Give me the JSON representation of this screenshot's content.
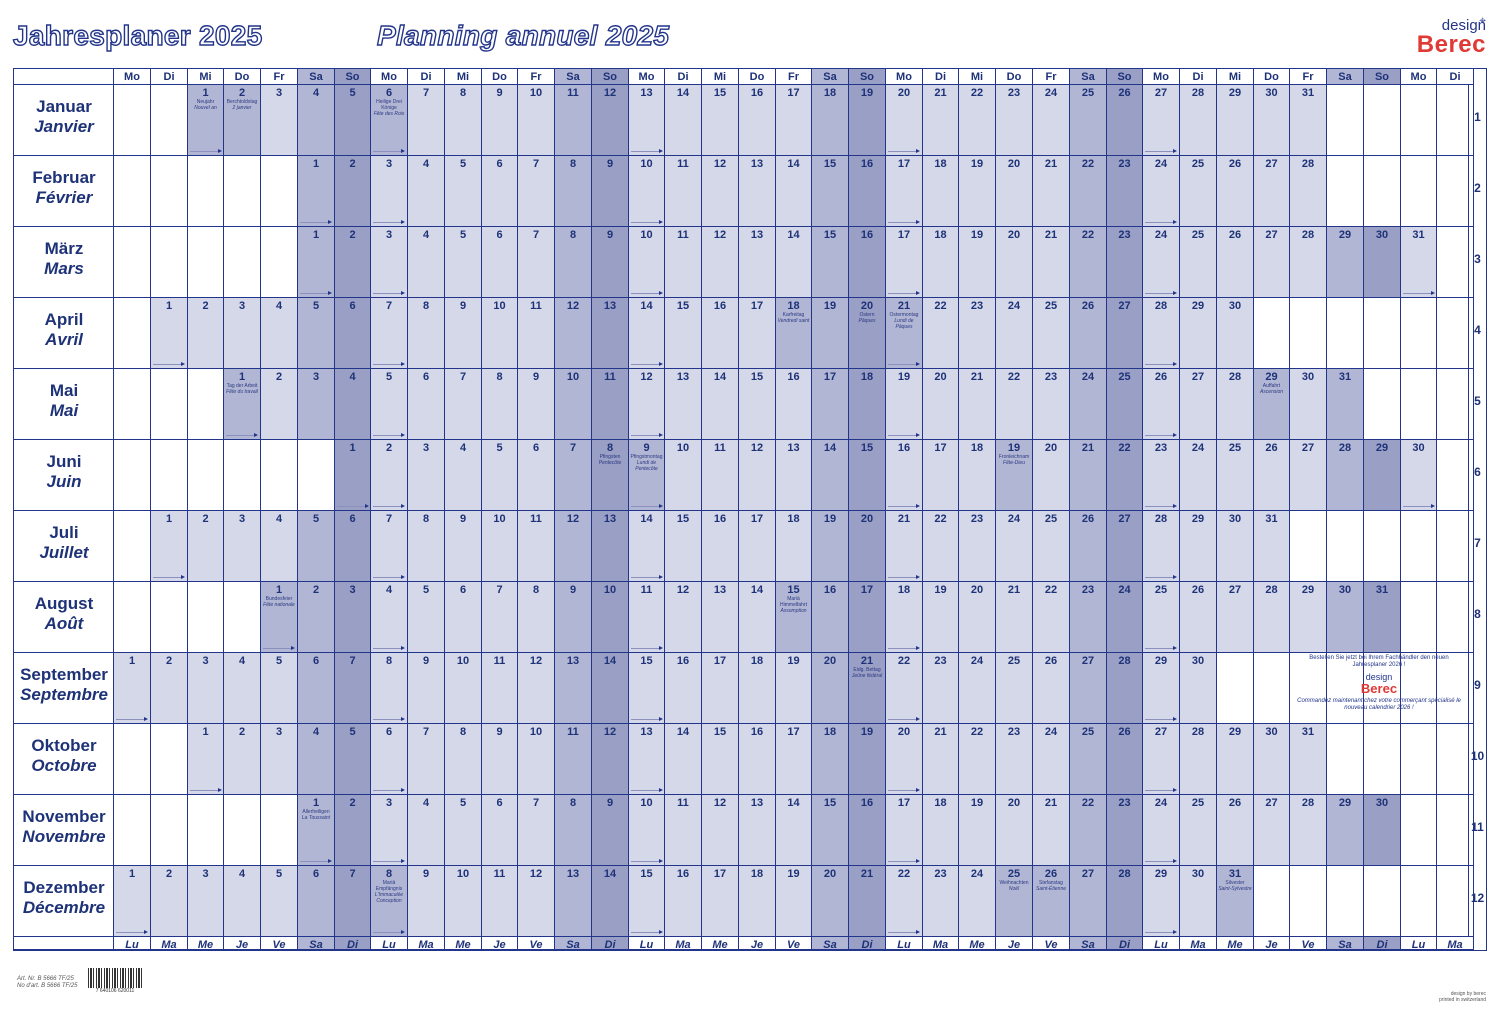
{
  "header": {
    "title_de": "Jahresplaner 2025",
    "title_fr": "Planning annuel 2025",
    "brand_design": "design",
    "brand_name": "Berec"
  },
  "weekday_header": [
    "Mo",
    "Di",
    "Mi",
    "Do",
    "Fr",
    "Sa",
    "So",
    "Mo",
    "Di",
    "Mi",
    "Do",
    "Fr",
    "Sa",
    "So",
    "Mo",
    "Di",
    "Mi",
    "Do",
    "Fr",
    "Sa",
    "So",
    "Mo",
    "Di",
    "Mi",
    "Do",
    "Fr",
    "Sa",
    "So",
    "Mo",
    "Di",
    "Mi",
    "Do",
    "Fr",
    "Sa",
    "So",
    "Mo",
    "Di"
  ],
  "weekday_footer": [
    "Lu",
    "Ma",
    "Me",
    "Je",
    "Ve",
    "Sa",
    "Di",
    "Lu",
    "Ma",
    "Me",
    "Je",
    "Ve",
    "Sa",
    "Di",
    "Lu",
    "Ma",
    "Me",
    "Je",
    "Ve",
    "Sa",
    "Di",
    "Lu",
    "Ma",
    "Me",
    "Je",
    "Ve",
    "Sa",
    "Di",
    "Lu",
    "Ma",
    "Me",
    "Je",
    "Ve",
    "Sa",
    "Di",
    "Lu",
    "Ma"
  ],
  "months": [
    {
      "de": "Januar",
      "fr": "Janvier",
      "num": "1",
      "offset": 2,
      "days": 31
    },
    {
      "de": "Februar",
      "fr": "Février",
      "num": "2",
      "offset": 5,
      "days": 28
    },
    {
      "de": "März",
      "fr": "Mars",
      "num": "3",
      "offset": 5,
      "days": 31
    },
    {
      "de": "April",
      "fr": "Avril",
      "num": "4",
      "offset": 1,
      "days": 30
    },
    {
      "de": "Mai",
      "fr": "Mai",
      "num": "5",
      "offset": 3,
      "days": 31
    },
    {
      "de": "Juni",
      "fr": "Juin",
      "num": "6",
      "offset": 6,
      "days": 30
    },
    {
      "de": "Juli",
      "fr": "Juillet",
      "num": "7",
      "offset": 1,
      "days": 31
    },
    {
      "de": "August",
      "fr": "Août",
      "num": "8",
      "offset": 4,
      "days": 31
    },
    {
      "de": "September",
      "fr": "Septembre",
      "num": "9",
      "offset": 0,
      "days": 30
    },
    {
      "de": "Oktober",
      "fr": "Octobre",
      "num": "10",
      "offset": 2,
      "days": 31
    },
    {
      "de": "November",
      "fr": "Novembre",
      "num": "11",
      "offset": 5,
      "days": 30
    },
    {
      "de": "Dezember",
      "fr": "Décembre",
      "num": "12",
      "offset": 0,
      "days": 31
    }
  ],
  "holidays": [
    {
      "m": 0,
      "d": 1,
      "de": "Neujahr",
      "fr": "Nouvel an"
    },
    {
      "m": 0,
      "d": 2,
      "de": "Berchtoldstag",
      "fr": "2 janvier"
    },
    {
      "m": 0,
      "d": 6,
      "de": "Heilige Drei Könige",
      "fr": "Fête des Rois"
    },
    {
      "m": 3,
      "d": 18,
      "de": "Karfreitag",
      "fr": "Vendredi saint"
    },
    {
      "m": 3,
      "d": 20,
      "de": "Ostern",
      "fr": "Pâques"
    },
    {
      "m": 3,
      "d": 21,
      "de": "Ostermontag",
      "fr": "Lundi de Pâques"
    },
    {
      "m": 4,
      "d": 1,
      "de": "Tag der Arbeit",
      "fr": "Fête du travail"
    },
    {
      "m": 4,
      "d": 29,
      "de": "Auffahrt",
      "fr": "Ascension"
    },
    {
      "m": 5,
      "d": 8,
      "de": "Pfingsten",
      "fr": "Pentecôte"
    },
    {
      "m": 5,
      "d": 9,
      "de": "Pfingstmontag",
      "fr": "Lundi de Pentecôte"
    },
    {
      "m": 5,
      "d": 19,
      "de": "Fronleichnam",
      "fr": "Fête-Dieu"
    },
    {
      "m": 7,
      "d": 1,
      "de": "Bundesfeier",
      "fr": "Fête nationale"
    },
    {
      "m": 7,
      "d": 15,
      "de": "Mariä Himmelfahrt",
      "fr": "Assomption"
    },
    {
      "m": 8,
      "d": 21,
      "de": "Eidg. Bettag",
      "fr": "Jeûne fédéral"
    },
    {
      "m": 10,
      "d": 1,
      "de": "Allerheiligen",
      "fr": "La Toussaint"
    },
    {
      "m": 11,
      "d": 8,
      "de": "Mariä Empfängnis",
      "fr": "L'Immaculée Conception"
    },
    {
      "m": 11,
      "d": 25,
      "de": "Weihnachten",
      "fr": "Noël"
    },
    {
      "m": 11,
      "d": 26,
      "de": "Stefanstag",
      "fr": "Saint-Étienne"
    },
    {
      "m": 11,
      "d": 31,
      "de": "Silvester",
      "fr": "Saint-Sylvestre"
    }
  ],
  "ad": {
    "line_de": "Bestellen Sie jetzt bei Ihrem Fachhändler den neuen Jahresplaner 2026 !",
    "brand_design": "design",
    "brand_name": "Berec",
    "line_fr": "Commandez maintenant chez votre commerçant spécialisé le nouveau calendrier 2026 !"
  },
  "footer": {
    "art_de": "Art. Nr. B 5666 TF/25",
    "art_fr": "No d'art. B 5666 TF/25",
    "barcode_digits": "7 640106 620011",
    "credit_1": "design by berec",
    "credit_2": "printed in switzerland"
  },
  "colors": {
    "ink": "#1e3278",
    "weekday_fill": "#d5d8e9",
    "saturday_fill": "#b2b6d5",
    "sunday_fill": "#9a9fc6",
    "brand_red": "#e03a36"
  }
}
